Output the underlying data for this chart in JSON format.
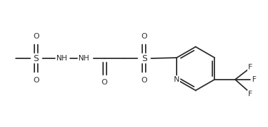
{
  "bg_color": "#ffffff",
  "line_color": "#2b2b2b",
  "figsize": [
    3.9,
    1.85
  ],
  "dpi": 100,
  "xlim": [
    0,
    390
  ],
  "ylim": [
    0,
    185
  ]
}
